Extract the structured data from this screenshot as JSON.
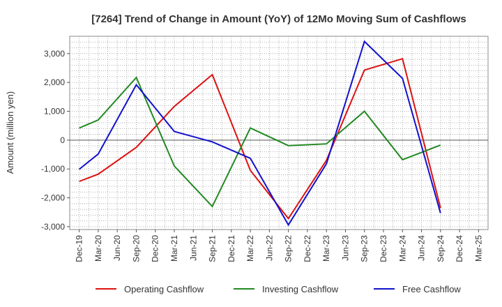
{
  "chart_data": {
    "type": "line",
    "title": "[7264]  Trend of Change in Amount (YoY) of 12Mo Moving Sum of Cashflows",
    "xlabel": "",
    "ylabel": "Amount (million yen)",
    "ylim": [
      -3100,
      3600
    ],
    "yticks": [
      3000,
      2000,
      1000,
      0,
      -1000,
      -2000,
      -3000
    ],
    "ytick_labels": [
      "3,000",
      "2,000",
      "1,000",
      "0",
      "-1,000",
      "-2,000",
      "-3,000"
    ],
    "categories": [
      "Dec-19",
      "Mar-20",
      "Jun-20",
      "Sep-20",
      "Dec-20",
      "Mar-21",
      "Jun-21",
      "Sep-21",
      "Dec-21",
      "Mar-22",
      "Jun-22",
      "Sep-22",
      "Dec-22",
      "Mar-23",
      "Jun-23",
      "Sep-23",
      "Dec-23",
      "Mar-24",
      "Jun-24",
      "Sep-24",
      "Dec-24",
      "Mar-25"
    ],
    "grid": true,
    "legend_position": "bottom",
    "series": [
      {
        "name": "Operating Cashflow",
        "color": "#dd1111",
        "values": [
          -1430,
          -1180,
          null,
          -250,
          null,
          1170,
          null,
          2270,
          null,
          -1050,
          null,
          -2720,
          null,
          -700,
          null,
          2430,
          null,
          2820,
          null,
          -2350,
          null,
          null
        ]
      },
      {
        "name": "Investing Cashflow",
        "color": "#228822",
        "values": [
          420,
          700,
          null,
          2170,
          null,
          -900,
          null,
          -2300,
          null,
          420,
          null,
          -190,
          null,
          -130,
          null,
          1000,
          null,
          -680,
          null,
          -170,
          null,
          null
        ]
      },
      {
        "name": "Free Cashflow",
        "color": "#1111cc",
        "values": [
          -1010,
          -480,
          null,
          1920,
          null,
          300,
          null,
          -60,
          null,
          -630,
          null,
          -2940,
          null,
          -820,
          null,
          3420,
          null,
          2140,
          null,
          -2530,
          null,
          null
        ]
      }
    ]
  }
}
